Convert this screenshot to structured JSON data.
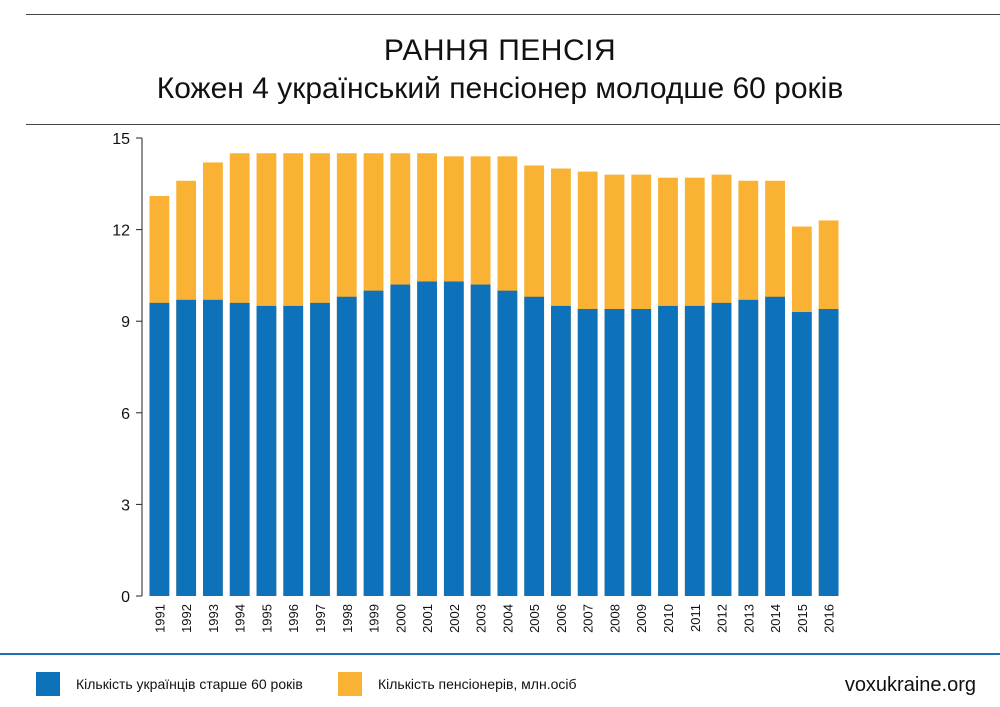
{
  "header": {
    "title": "РАННЯ ПЕНСІЯ",
    "subtitle": "Кожен 4 український пенсіонер молодше 60 років"
  },
  "colors": {
    "blue": "#0e72bb",
    "orange": "#f9b233",
    "footer_rule": "#1f6fb8"
  },
  "legend": {
    "blue_label": "Кількість українців старше 60 років",
    "orange_label": "Кількість пенсіонерів, млн.осіб"
  },
  "footer": {
    "site": "voxukraine.org"
  },
  "chart_data": {
    "type": "bar",
    "title": "",
    "xlabel": "",
    "ylabel": "",
    "ylim": [
      0,
      15
    ],
    "yticks": [
      0,
      3,
      6,
      9,
      12,
      15
    ],
    "grid": false,
    "legend_position": "bottom",
    "categories": [
      "1991",
      "1992",
      "1993",
      "1994",
      "1995",
      "1996",
      "1997",
      "1998",
      "1999",
      "2000",
      "2001",
      "2002",
      "2003",
      "2004",
      "2005",
      "2006",
      "2007",
      "2008",
      "2009",
      "2010",
      "2011",
      "2012",
      "2013",
      "2014",
      "2015",
      "2016"
    ],
    "series": [
      {
        "name": "Кількість українців старше 60 років",
        "values": [
          9.6,
          9.7,
          9.7,
          9.6,
          9.5,
          9.5,
          9.6,
          9.8,
          10.0,
          10.2,
          10.3,
          10.3,
          10.2,
          10.0,
          9.8,
          9.5,
          9.4,
          9.4,
          9.4,
          9.5,
          9.5,
          9.6,
          9.7,
          9.8,
          9.3,
          9.4
        ]
      },
      {
        "name": "Кількість пенсіонерів, млн.осіб",
        "values": [
          13.1,
          13.6,
          14.2,
          14.5,
          14.5,
          14.5,
          14.5,
          14.5,
          14.5,
          14.5,
          14.5,
          14.4,
          14.4,
          14.4,
          14.1,
          14.0,
          13.9,
          13.8,
          13.8,
          13.7,
          13.7,
          13.8,
          13.6,
          13.6,
          12.1,
          12.3
        ]
      }
    ]
  }
}
